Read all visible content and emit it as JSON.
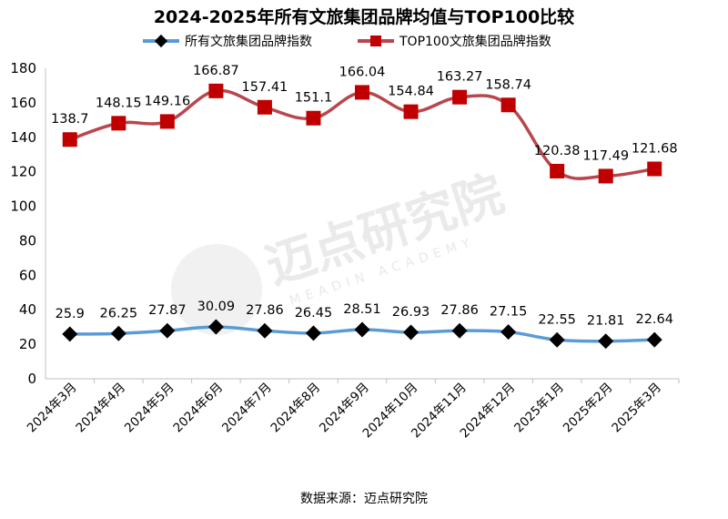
{
  "chart_data": {
    "type": "line",
    "title": "2024-2025年所有文旅集团品牌均值与TOP100比较",
    "categories": [
      "2024年3月",
      "2024年4月",
      "2024年5月",
      "2024年6月",
      "2024年7月",
      "2024年8月",
      "2024年9月",
      "2024年10月",
      "2024年11月",
      "2024年12月",
      "2025年1月",
      "2025年2月",
      "2025年3月"
    ],
    "series": [
      {
        "name": "所有文旅集团品牌指数",
        "values": [
          25.9,
          26.25,
          27.87,
          30.09,
          27.86,
          26.45,
          28.51,
          26.93,
          27.86,
          27.15,
          22.55,
          21.81,
          22.64
        ],
        "labels": [
          "25.9",
          "26.25",
          "27.87",
          "30.09",
          "27.86",
          "26.45",
          "28.51",
          "26.93",
          "27.86",
          "27.15",
          "22.55",
          "21.81",
          "22.64"
        ],
        "line_color": "#5b9bd5",
        "marker_color": "#000000",
        "marker": "diamond"
      },
      {
        "name": "TOP100文旅集团品牌指数",
        "values": [
          138.7,
          148.15,
          149.16,
          166.87,
          157.41,
          151.1,
          166.04,
          154.84,
          163.27,
          158.74,
          120.38,
          117.49,
          121.68
        ],
        "labels": [
          "138.7",
          "148.15",
          "149.16",
          "166.87",
          "157.41",
          "151.1",
          "166.04",
          "154.84",
          "163.27",
          "158.74",
          "120.38",
          "117.49",
          "121.68"
        ],
        "line_color": "#b8474d",
        "marker_color": "#c00000",
        "marker": "square"
      }
    ],
    "ylim": [
      0,
      180
    ],
    "yticks": [
      0,
      20,
      40,
      60,
      80,
      100,
      120,
      140,
      160,
      180
    ],
    "xlabel": "",
    "ylabel": "",
    "grid": false,
    "legend": "top-center"
  },
  "watermark": {
    "text": "迈点研究院",
    "subtext": "MEADIN ACADEMY"
  },
  "source": "数据来源：迈点研究院"
}
